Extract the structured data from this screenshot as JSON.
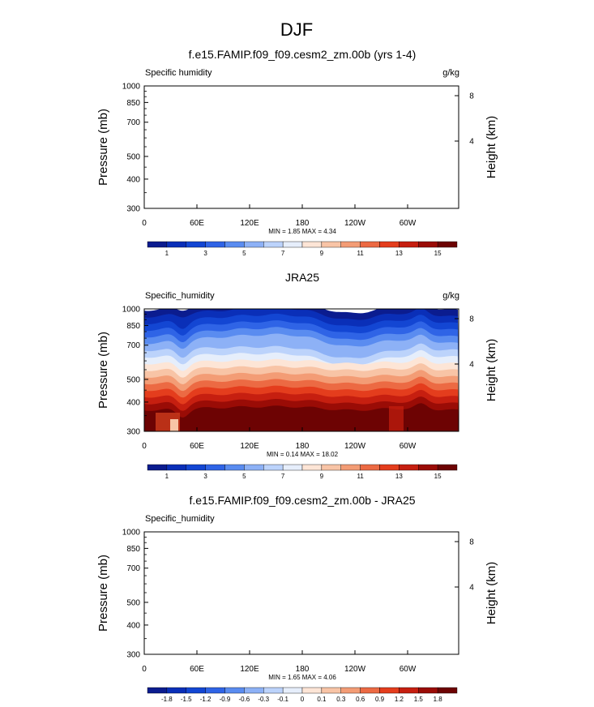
{
  "figure": {
    "title": "DJF"
  },
  "colormaps": {
    "abs": [
      "#0b1c8f",
      "#0a2fb8",
      "#1346d3",
      "#2f64e6",
      "#5a8cf0",
      "#8db1f6",
      "#bcd3fb",
      "#e6eefb",
      "#fde5d6",
      "#f8c4a6",
      "#f39c75",
      "#ec6a43",
      "#e43d1d",
      "#c61f10",
      "#9a0c06",
      "#6d0303"
    ],
    "diff": [
      "#0b1c8f",
      "#0a2fb8",
      "#1346d3",
      "#2f64e6",
      "#5a8cf0",
      "#8db1f6",
      "#bcd3fb",
      "#e6eefb",
      "#fde5d6",
      "#f8c4a6",
      "#f39c75",
      "#ec6a43",
      "#e43d1d",
      "#c61f10",
      "#9a0c06",
      "#6d0303"
    ]
  },
  "chart_data": [
    {
      "type": "heatmap",
      "title": "f.e15.FAMIP.f09_f09.cesm2_zm.00b (yrs 1-4)",
      "left_label": "Specific humidity",
      "right_label": "g/kg",
      "ylabel": "Pressure (mb)",
      "y2label": "Height (km)",
      "y_ticks": [
        "300",
        "400",
        "500",
        "700",
        "850",
        "1000"
      ],
      "y2_ticks": [
        "8",
        "4"
      ],
      "x_ticks": [
        "0",
        "60E",
        "120E",
        "180",
        "120W",
        "60W"
      ],
      "stats": "MIN =   1.85  MAX =   4.34",
      "filled": false,
      "colorbar_labels": [
        "1",
        "3",
        "5",
        "7",
        "9",
        "11",
        "13",
        "15"
      ]
    },
    {
      "type": "heatmap",
      "title": "JRA25",
      "left_label": "Specific_humidity",
      "right_label": "g/kg",
      "ylabel": "Pressure (mb)",
      "y2label": "Height (km)",
      "y_ticks": [
        "300",
        "400",
        "500",
        "700",
        "850",
        "1000"
      ],
      "y2_ticks": [
        "8",
        "4"
      ],
      "x_ticks": [
        "0",
        "60E",
        "120E",
        "180",
        "120W",
        "60W"
      ],
      "stats": "MIN =   0.14  MAX =  18.02",
      "filled": true,
      "colorbar_labels": [
        "1",
        "3",
        "5",
        "7",
        "9",
        "11",
        "13",
        "15"
      ]
    },
    {
      "type": "heatmap",
      "title": "f.e15.FAMIP.f09_f09.cesm2_zm.00b - JRA25",
      "left_label": "Specific_humidity",
      "right_label": "",
      "ylabel": "Pressure (mb)",
      "y2label": "Height (km)",
      "y_ticks": [
        "300",
        "400",
        "500",
        "700",
        "850",
        "1000"
      ],
      "y2_ticks": [
        "8",
        "4"
      ],
      "x_ticks": [
        "0",
        "60E",
        "120E",
        "180",
        "120W",
        "60W"
      ],
      "stats": "MIN =   1.65  MAX =   4.06",
      "filled": false,
      "colorbar_labels": [
        "-1.8",
        "-1.5",
        "-1.2",
        "-0.9",
        "-0.6",
        "-0.3",
        "-0.1",
        "0",
        "0.1",
        "0.3",
        "0.6",
        "0.9",
        "1.2",
        "1.5",
        "1.8"
      ]
    }
  ]
}
